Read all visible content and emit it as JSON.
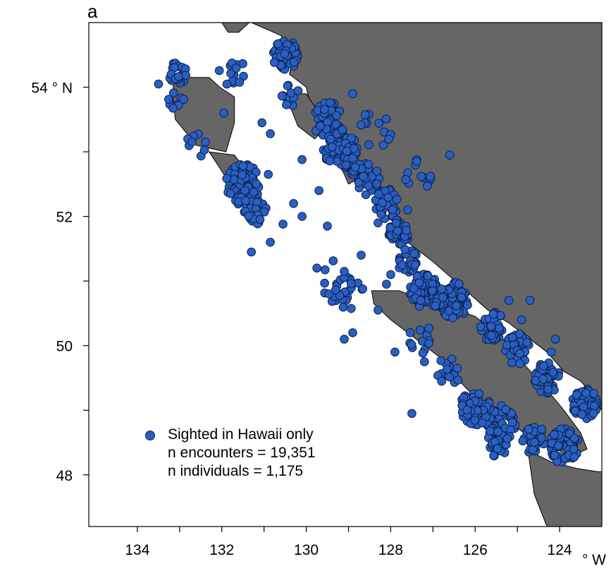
{
  "panel_label": "a",
  "colors": {
    "land": "#666666",
    "sea": "#ffffff",
    "point_fill": "#2a5fc2",
    "point_edge": "#0a1f4a"
  },
  "axes": {
    "y_unit": "° N",
    "x_unit": "° W",
    "y_ticks": [
      {
        "value": 54,
        "label": "54"
      },
      {
        "value": 52,
        "label": "52"
      },
      {
        "value": 50,
        "label": "50"
      },
      {
        "value": 48,
        "label": "48"
      }
    ],
    "y_minor_ticks": [
      53,
      51,
      49
    ],
    "x_ticks": [
      {
        "value": 134,
        "label": "134"
      },
      {
        "value": 132,
        "label": "132"
      },
      {
        "value": 130,
        "label": "130"
      },
      {
        "value": 128,
        "label": "128"
      },
      {
        "value": 126,
        "label": "126"
      },
      {
        "value": 124,
        "label": "124"
      }
    ],
    "x_minor_ticks": [
      133,
      131,
      129,
      127,
      125
    ],
    "lon_range_W": [
      135.15,
      123.0
    ],
    "lat_range_N": [
      47.2,
      55.0
    ]
  },
  "legend": {
    "label": "Sighted in Hawaii only",
    "line2": "n encounters = 19,351",
    "line3": "n individuals = 1,175"
  },
  "land": [
    {
      "name": "mainland-coast",
      "coords": [
        [
          131.3,
          55.0
        ],
        [
          130.6,
          54.8
        ],
        [
          130.3,
          54.5
        ],
        [
          130.4,
          54.2
        ],
        [
          130.0,
          54.0
        ],
        [
          129.9,
          53.7
        ],
        [
          129.3,
          53.4
        ],
        [
          129.1,
          53.0
        ],
        [
          128.7,
          52.7
        ],
        [
          128.3,
          52.4
        ],
        [
          128.0,
          52.0
        ],
        [
          127.6,
          51.6
        ],
        [
          127.0,
          51.3
        ],
        [
          126.3,
          50.9
        ],
        [
          125.7,
          50.55
        ],
        [
          125.2,
          50.35
        ],
        [
          124.7,
          50.1
        ],
        [
          124.3,
          49.9
        ],
        [
          123.9,
          49.6
        ],
        [
          123.5,
          49.45
        ],
        [
          123.3,
          49.3
        ],
        [
          123.15,
          49.15
        ],
        [
          123.0,
          49.0
        ],
        [
          123.0,
          55.0
        ]
      ]
    },
    {
      "name": "vancouver-island",
      "coords": [
        [
          128.45,
          50.85
        ],
        [
          127.8,
          50.85
        ],
        [
          127.2,
          50.7
        ],
        [
          126.6,
          50.6
        ],
        [
          126.0,
          50.45
        ],
        [
          125.4,
          50.15
        ],
        [
          124.9,
          49.75
        ],
        [
          124.4,
          49.4
        ],
        [
          123.9,
          49.0
        ],
        [
          123.5,
          48.65
        ],
        [
          123.35,
          48.4
        ],
        [
          123.75,
          48.28
        ],
        [
          124.35,
          48.5
        ],
        [
          124.85,
          48.65
        ],
        [
          125.25,
          48.85
        ],
        [
          125.85,
          49.1
        ],
        [
          126.3,
          49.4
        ],
        [
          126.8,
          49.8
        ],
        [
          127.4,
          50.1
        ],
        [
          128.0,
          50.4
        ],
        [
          128.4,
          50.65
        ]
      ]
    },
    {
      "name": "graham-island",
      "coords": [
        [
          133.15,
          54.15
        ],
        [
          132.3,
          54.15
        ],
        [
          132.05,
          54.0
        ],
        [
          131.7,
          53.85
        ],
        [
          131.7,
          53.45
        ],
        [
          131.9,
          53.0
        ],
        [
          132.6,
          53.1
        ],
        [
          133.1,
          53.5
        ],
        [
          133.15,
          53.8
        ]
      ]
    },
    {
      "name": "moresby-island",
      "coords": [
        [
          132.3,
          53.0
        ],
        [
          131.7,
          52.95
        ],
        [
          131.3,
          52.6
        ],
        [
          131.0,
          52.2
        ],
        [
          131.2,
          52.0
        ],
        [
          131.6,
          52.3
        ],
        [
          132.0,
          52.7
        ]
      ]
    },
    {
      "name": "olympic-peninsula",
      "coords": [
        [
          124.75,
          48.38
        ],
        [
          124.2,
          48.2
        ],
        [
          123.6,
          48.1
        ],
        [
          123.1,
          48.05
        ],
        [
          123.0,
          48.05
        ],
        [
          123.0,
          47.2
        ],
        [
          124.3,
          47.2
        ],
        [
          124.6,
          47.7
        ]
      ]
    },
    {
      "name": "alaska-islands",
      "coords": [
        [
          132.0,
          55.0
        ],
        [
          131.35,
          55.0
        ],
        [
          131.6,
          54.85
        ],
        [
          131.85,
          54.85
        ]
      ]
    },
    {
      "name": "pitt-banks-islands",
      "coords": [
        [
          130.5,
          53.9
        ],
        [
          130.0,
          53.9
        ],
        [
          129.5,
          53.4
        ],
        [
          129.8,
          53.2
        ],
        [
          130.2,
          53.4
        ]
      ]
    },
    {
      "name": "princess-royal-islands",
      "coords": [
        [
          129.3,
          53.2
        ],
        [
          128.8,
          53.0
        ],
        [
          128.7,
          52.6
        ],
        [
          129.0,
          52.5
        ],
        [
          129.2,
          52.8
        ]
      ]
    }
  ],
  "clusters": [
    {
      "lat": 54.22,
      "lon": 133.05,
      "radius": 0.22,
      "count": 24
    },
    {
      "lat": 54.23,
      "lon": 131.8,
      "radius": 0.35,
      "count": 14
    },
    {
      "lat": 53.8,
      "lon": 133.1,
      "radius": 0.2,
      "count": 8
    },
    {
      "lat": 53.1,
      "lon": 132.6,
      "radius": 0.25,
      "count": 8
    },
    {
      "lat": 52.5,
      "lon": 131.5,
      "radius": 0.4,
      "count": 95
    },
    {
      "lat": 52.1,
      "lon": 131.2,
      "radius": 0.3,
      "count": 18
    },
    {
      "lat": 54.5,
      "lon": 130.5,
      "radius": 0.3,
      "count": 60
    },
    {
      "lat": 53.9,
      "lon": 130.4,
      "radius": 0.25,
      "count": 15
    },
    {
      "lat": 53.5,
      "lon": 129.5,
      "radius": 0.35,
      "count": 40
    },
    {
      "lat": 53.05,
      "lon": 129.2,
      "radius": 0.4,
      "count": 80
    },
    {
      "lat": 52.6,
      "lon": 128.6,
      "radius": 0.35,
      "count": 40
    },
    {
      "lat": 52.2,
      "lon": 128.1,
      "radius": 0.3,
      "count": 35
    },
    {
      "lat": 51.75,
      "lon": 127.8,
      "radius": 0.25,
      "count": 40
    },
    {
      "lat": 51.3,
      "lon": 127.6,
      "radius": 0.25,
      "count": 25
    },
    {
      "lat": 50.85,
      "lon": 127.2,
      "radius": 0.35,
      "count": 70
    },
    {
      "lat": 50.7,
      "lon": 126.5,
      "radius": 0.35,
      "count": 90
    },
    {
      "lat": 50.75,
      "lon": 126.9,
      "radius": 0.2,
      "count": 40
    },
    {
      "lat": 50.3,
      "lon": 125.6,
      "radius": 0.3,
      "count": 45
    },
    {
      "lat": 49.95,
      "lon": 125.0,
      "radius": 0.3,
      "count": 50
    },
    {
      "lat": 49.5,
      "lon": 124.3,
      "radius": 0.3,
      "count": 50
    },
    {
      "lat": 49.1,
      "lon": 123.4,
      "radius": 0.3,
      "count": 70
    },
    {
      "lat": 48.45,
      "lon": 123.9,
      "radius": 0.35,
      "count": 70
    },
    {
      "lat": 48.55,
      "lon": 124.6,
      "radius": 0.3,
      "count": 30
    },
    {
      "lat": 48.8,
      "lon": 125.4,
      "radius": 0.35,
      "count": 45
    },
    {
      "lat": 49.05,
      "lon": 126.0,
      "radius": 0.35,
      "count": 45
    },
    {
      "lat": 48.5,
      "lon": 125.5,
      "radius": 0.3,
      "count": 25
    },
    {
      "lat": 49.6,
      "lon": 126.6,
      "radius": 0.3,
      "count": 15
    },
    {
      "lat": 50.1,
      "lon": 127.3,
      "radius": 0.3,
      "count": 12
    },
    {
      "lat": 50.75,
      "lon": 129.0,
      "radius": 0.4,
      "count": 18
    },
    {
      "lat": 51.05,
      "lon": 129.3,
      "radius": 0.4,
      "count": 12
    },
    {
      "lat": 53.3,
      "lon": 128.4,
      "radius": 0.4,
      "count": 12
    },
    {
      "lat": 52.6,
      "lon": 127.4,
      "radius": 0.35,
      "count": 12
    }
  ],
  "single_points": [
    [
      54.05,
      133.5
    ],
    [
      53.6,
      131.95
    ],
    [
      52.4,
      131.45
    ],
    [
      51.45,
      131.3
    ],
    [
      51.88,
      130.55
    ],
    [
      52.0,
      130.1
    ],
    [
      52.88,
      130.1
    ],
    [
      52.65,
      130.9
    ],
    [
      53.28,
      130.85
    ],
    [
      52.4,
      129.7
    ],
    [
      51.2,
      129.75
    ],
    [
      51.15,
      129.1
    ],
    [
      51.85,
      129.5
    ],
    [
      51.6,
      130.85
    ],
    [
      50.1,
      129.1
    ],
    [
      49.9,
      127.9
    ],
    [
      49.75,
      127.2
    ],
    [
      48.95,
      127.5
    ],
    [
      52.95,
      126.6
    ],
    [
      52.1,
      127.6
    ],
    [
      51.1,
      128.0
    ],
    [
      50.95,
      128.1
    ],
    [
      50.55,
      128.3
    ],
    [
      50.2,
      128.9
    ],
    [
      51.9,
      128.3
    ],
    [
      52.9,
      128.9
    ],
    [
      53.9,
      128.9
    ],
    [
      53.45,
      131.05
    ],
    [
      52.2,
      130.3
    ],
    [
      51.4,
      128.7
    ],
    [
      50.7,
      125.2
    ],
    [
      50.4,
      124.9
    ],
    [
      50.7,
      124.7
    ],
    [
      50.1,
      124.1
    ],
    [
      49.9,
      124.2
    ],
    [
      48.95,
      123.2
    ]
  ]
}
